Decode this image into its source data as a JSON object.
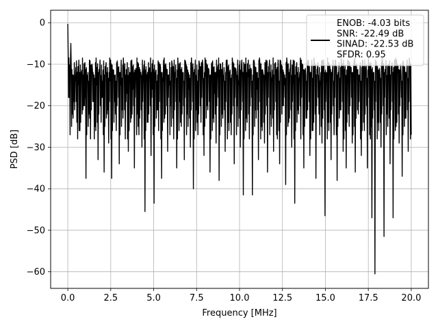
{
  "chart_data": {
    "type": "line",
    "title": "",
    "xlabel": "Frequency [MHz]",
    "ylabel": "PSD [dB]",
    "xlim": [
      -1.0,
      21.0
    ],
    "ylim": [
      -64.0,
      3.0
    ],
    "x_ticks": [
      0.0,
      2.5,
      5.0,
      7.5,
      10.0,
      12.5,
      15.0,
      17.5,
      20.0
    ],
    "x_tick_labels": [
      "0.0",
      "2.5",
      "5.0",
      "7.5",
      "10.0",
      "12.5",
      "15.0",
      "17.5",
      "20.0"
    ],
    "y_ticks": [
      0,
      -10,
      -20,
      -30,
      -40,
      -50,
      -60
    ],
    "y_tick_labels": [
      "0",
      "−10",
      "−20",
      "−30",
      "−40",
      "−50",
      "−60"
    ],
    "grid": true,
    "legend_position": "top-right",
    "series": [
      {
        "color": "#000000",
        "x_start": 0.0,
        "x_end": 20.0,
        "values": [
          -0.3,
          -18.0,
          -5.0,
          -22.0,
          -19.0,
          -13.0,
          -24.0,
          -15.0,
          -26.0,
          -12.0,
          -21.0,
          -20.0,
          -37.5,
          -14.0,
          -22.0,
          -28.0,
          -10.0,
          -19.0,
          -25.0,
          -15.0,
          -33.0,
          -12.0,
          -24.0,
          -18.0,
          -36.0,
          -11.0,
          -22.0,
          -29.0,
          -14.0,
          -37.5,
          -12.0,
          -19.0,
          -26.0,
          -13.0,
          -34.0,
          -15.0,
          -21.0,
          -11.0,
          -28.0,
          -17.0,
          -31.0,
          -12.0,
          -23.0,
          -16.0,
          -35.0,
          -11.0,
          -22.0,
          -27.0,
          -13.0,
          -30.0,
          -12.0,
          -45.5,
          -14.0,
          -24.0,
          -11.0,
          -32.0,
          -16.0,
          -43.5,
          -12.0,
          -21.0,
          -26.0,
          -10.0,
          -37.5,
          -14.0,
          -23.0,
          -11.0,
          -31.0,
          -15.0,
          -20.0,
          -10.0,
          -28.0,
          -13.0,
          -35.0,
          -11.0,
          -19.0,
          -25.0,
          -12.0,
          -33.0,
          -10.0,
          -22.0,
          -16.0,
          -30.0,
          -11.0,
          -40.0,
          -12.0,
          -21.0,
          -27.0,
          -10.0,
          -24.0,
          -9.0,
          -32.0,
          -13.0,
          -20.0,
          -11.0,
          -36.0,
          -10.0,
          -23.0,
          -17.0,
          -29.0,
          -11.0,
          -38.0,
          -10.0,
          -22.0,
          -14.0,
          -31.0,
          -9.0,
          -24.0,
          -12.0,
          -27.0,
          -10.0,
          -34.0,
          -11.0,
          -20.0,
          -15.0,
          -30.0,
          -9.0,
          -41.5,
          -10.0,
          -23.0,
          -13.0,
          -28.0,
          -11.0,
          -41.5,
          -9.0,
          -21.0,
          -16.0,
          -33.0,
          -10.0,
          -25.0,
          -12.0,
          -29.0,
          -9.0,
          -36.0,
          -11.0,
          -22.0,
          -14.0,
          -31.0,
          -10.0,
          -27.0,
          -9.0,
          -34.0,
          -12.0,
          -20.0,
          -15.0,
          -39.0,
          -10.0,
          -24.0,
          -11.0,
          -30.0,
          -9.0,
          -43.5,
          -12.0,
          -21.0,
          -14.0,
          -28.0,
          -10.0,
          -35.0,
          -11.0,
          -23.0,
          -9.0,
          -32.0,
          -13.0,
          -26.0,
          -10.0,
          -37.5,
          -11.0,
          -22.0,
          -15.0,
          -29.0,
          -9.0,
          -46.5,
          -12.0,
          -24.0,
          -10.0,
          -33.0,
          -11.0,
          -27.0,
          -9.0,
          -38.0,
          -13.0,
          -21.0,
          -10.0,
          -31.0,
          -12.0,
          -35.0,
          -9.0,
          -25.0,
          -11.0,
          -29.0,
          -10.0,
          -36.0,
          -12.0,
          -22.0,
          -14.0,
          -32.0,
          -9.0,
          -26.0,
          -11.0,
          -35.0,
          -10.0,
          -28.0,
          -47.0,
          -12.0,
          -60.5,
          -10.0,
          -24.0,
          -11.0,
          -30.0,
          -9.0,
          -51.5,
          -12.0,
          -22.0,
          -10.0,
          -34.0,
          -11.0,
          -47.0,
          -9.0,
          -25.0,
          -12.0,
          -29.0,
          -10.0,
          -37.0,
          -11.0,
          -23.0,
          -13.0,
          -31.0,
          -10.0,
          -27.0
        ]
      }
    ],
    "legend": {
      "lines": [
        "ENOB: -4.03 bits",
        "SNR: -22.49 dB",
        "SINAD: -22.53 dB",
        "SFDR: 0.95"
      ]
    }
  }
}
